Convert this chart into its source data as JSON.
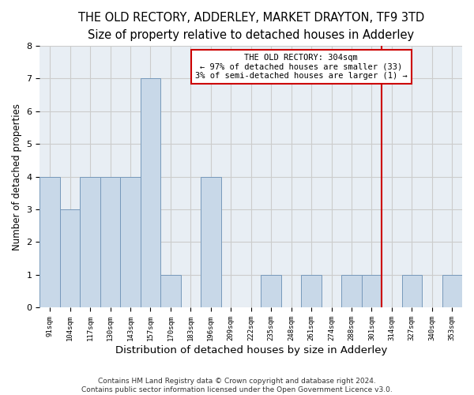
{
  "title": "THE OLD RECTORY, ADDERLEY, MARKET DRAYTON, TF9 3TD",
  "subtitle": "Size of property relative to detached houses in Adderley",
  "xlabel": "Distribution of detached houses by size in Adderley",
  "ylabel": "Number of detached properties",
  "categories": [
    "91sqm",
    "104sqm",
    "117sqm",
    "130sqm",
    "143sqm",
    "157sqm",
    "170sqm",
    "183sqm",
    "196sqm",
    "209sqm",
    "222sqm",
    "235sqm",
    "248sqm",
    "261sqm",
    "274sqm",
    "288sqm",
    "301sqm",
    "314sqm",
    "327sqm",
    "340sqm",
    "353sqm"
  ],
  "values": [
    4,
    3,
    4,
    4,
    4,
    7,
    1,
    0,
    4,
    0,
    0,
    1,
    0,
    1,
    0,
    1,
    1,
    0,
    1,
    0,
    1
  ],
  "bar_color": "#c8d8e8",
  "bar_edge_color": "#7799bb",
  "grid_color": "#cccccc",
  "bg_color": "#e8eef4",
  "red_line_index": 16,
  "annotation_text_line1": "THE OLD RECTORY: 304sqm",
  "annotation_text_line2": "← 97% of detached houses are smaller (33)",
  "annotation_text_line3": "3% of semi-detached houses are larger (1) →",
  "annotation_box_color": "#cc0000",
  "footer_line1": "Contains HM Land Registry data © Crown copyright and database right 2024.",
  "footer_line2": "Contains public sector information licensed under the Open Government Licence v3.0.",
  "ylim": [
    0,
    8
  ],
  "title_fontsize": 10.5,
  "subtitle_fontsize": 9.5,
  "ylabel_fontsize": 8.5,
  "xlabel_fontsize": 9.5
}
